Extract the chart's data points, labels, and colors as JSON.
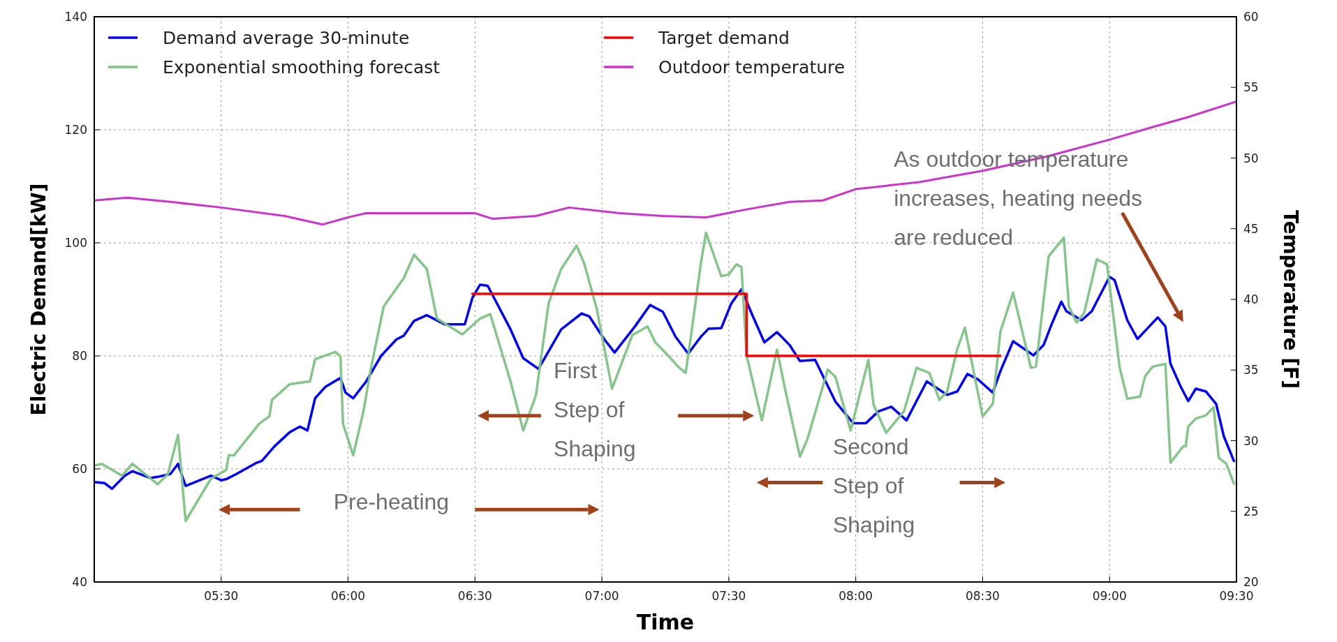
{
  "chart_data": {
    "type": "line",
    "xlabel": "Time",
    "ylabel": "Electric Demand[kW]",
    "y2label": "Temperature [F]",
    "xlim": [
      5,
      9.5
    ],
    "xticks": [
      {
        "value": 5.5,
        "label": "05:30"
      },
      {
        "value": 6,
        "label": "06:00"
      },
      {
        "value": 6.5,
        "label": "06:30"
      },
      {
        "value": 7,
        "label": "07:00"
      },
      {
        "value": 7.5,
        "label": "07:30"
      },
      {
        "value": 8,
        "label": "08:00"
      },
      {
        "value": 8.5,
        "label": "08:30"
      },
      {
        "value": 9,
        "label": "09:00"
      },
      {
        "value": 9.5,
        "label": "09:30"
      }
    ],
    "ylim": [
      40,
      140
    ],
    "yticks": [
      40,
      60,
      80,
      100,
      120,
      140
    ],
    "y2lim": [
      20,
      60
    ],
    "y2ticks": [
      20,
      25,
      30,
      35,
      40,
      45,
      50,
      55,
      60
    ],
    "grid": true,
    "legend": "top left",
    "line_style": "solid",
    "series": [
      {
        "name": "Demand average 30-minute",
        "color": "#0000ff",
        "x": [
          5.0,
          5.04,
          5.07,
          5.12,
          5.15,
          5.22,
          5.25,
          5.3,
          5.33,
          5.36,
          5.46,
          5.5,
          5.52,
          5.56,
          5.64,
          5.66,
          5.71,
          5.77,
          5.81,
          5.84,
          5.87,
          5.91,
          5.97,
          5.99,
          6.02,
          6.07,
          6.13,
          6.19,
          6.22,
          6.26,
          6.31,
          6.38,
          6.46,
          6.49,
          6.52,
          6.55,
          6.64,
          6.69,
          6.75,
          6.84,
          6.92,
          6.95,
          7.01,
          7.05,
          7.13,
          7.19,
          7.24,
          7.29,
          7.34,
          7.39,
          7.42,
          7.47,
          7.51,
          7.55,
          7.59,
          7.64,
          7.69,
          7.74,
          7.78,
          7.84,
          7.92,
          7.99,
          8.04,
          8.09,
          8.14,
          8.2,
          8.28,
          8.36,
          8.4,
          8.44,
          8.48,
          8.54,
          8.57,
          8.62,
          8.7,
          8.74,
          8.77,
          8.81,
          8.83,
          8.89,
          8.93,
          9.0,
          9.02,
          9.07,
          9.11,
          9.19,
          9.22,
          9.24,
          9.28,
          9.31,
          9.34,
          9.38,
          9.42,
          9.45,
          9.49
        ],
        "values": [
          57.7,
          57.5,
          56.5,
          58.8,
          59.6,
          58.4,
          58.6,
          59.1,
          60.9,
          57.0,
          58.8,
          58.0,
          58.2,
          59.1,
          61.1,
          61.4,
          64.0,
          66.5,
          67.5,
          66.8,
          72.5,
          74.5,
          76.1,
          73.5,
          72.5,
          75.4,
          80.0,
          82.9,
          83.6,
          86.2,
          87.2,
          85.6,
          85.6,
          90.3,
          92.6,
          92.4,
          84.7,
          79.6,
          77.7,
          84.7,
          87.5,
          87.0,
          82.9,
          80.6,
          85.2,
          89.0,
          87.8,
          83.4,
          80.4,
          83.4,
          84.8,
          84.9,
          89.3,
          91.8,
          87.5,
          82.4,
          84.2,
          81.9,
          79.1,
          79.3,
          71.9,
          68.1,
          68.1,
          70.2,
          71.0,
          68.6,
          75.5,
          73.1,
          73.7,
          76.8,
          75.9,
          73.5,
          77.3,
          82.6,
          80.1,
          81.9,
          85.4,
          89.6,
          87.9,
          86.3,
          87.9,
          94.0,
          93.4,
          86.3,
          83.0,
          86.8,
          85.2,
          78.6,
          74.6,
          72.0,
          74.2,
          73.7,
          71.5,
          65.8,
          61.4
        ]
      },
      {
        "name": "Exponential smoothing forecast",
        "color": "#7dc383",
        "x": [
          5.0,
          5.03,
          5.11,
          5.15,
          5.25,
          5.29,
          5.33,
          5.36,
          5.46,
          5.52,
          5.53,
          5.55,
          5.65,
          5.69,
          5.7,
          5.77,
          5.85,
          5.87,
          5.95,
          5.97,
          5.98,
          6.02,
          6.06,
          6.09,
          6.14,
          6.22,
          6.26,
          6.31,
          6.35,
          6.45,
          6.52,
          6.56,
          6.64,
          6.69,
          6.74,
          6.79,
          6.84,
          6.9,
          6.93,
          6.98,
          7.04,
          7.12,
          7.16,
          7.18,
          7.21,
          7.26,
          7.3,
          7.33,
          7.35,
          7.39,
          7.41,
          7.47,
          7.5,
          7.53,
          7.55,
          7.57,
          7.63,
          7.69,
          7.72,
          7.78,
          7.81,
          7.89,
          7.92,
          7.98,
          8.05,
          8.07,
          8.12,
          8.19,
          8.24,
          8.29,
          8.33,
          8.36,
          8.4,
          8.43,
          8.5,
          8.54,
          8.57,
          8.62,
          8.69,
          8.71,
          8.76,
          8.82,
          8.84,
          8.87,
          8.9,
          8.95,
          8.99,
          9.04,
          9.07,
          9.12,
          9.14,
          9.17,
          9.22,
          9.24,
          9.29,
          9.3,
          9.31,
          9.34,
          9.38,
          9.41,
          9.43,
          9.46,
          9.49
        ],
        "values": [
          60.6,
          60.9,
          58.8,
          60.9,
          57.3,
          59.1,
          66.0,
          50.8,
          58.3,
          59.8,
          62.4,
          62.4,
          68.0,
          69.3,
          72.2,
          75.0,
          75.5,
          79.4,
          80.7,
          79.9,
          68.0,
          62.4,
          70.1,
          77.8,
          88.7,
          93.8,
          97.9,
          95.4,
          86.6,
          83.8,
          86.6,
          87.4,
          75.5,
          66.8,
          73.0,
          89.3,
          95.4,
          99.5,
          96.4,
          88.3,
          74.2,
          83.7,
          84.7,
          85.2,
          82.4,
          80.1,
          78.1,
          77.0,
          83.2,
          96.4,
          101.8,
          94.1,
          94.4,
          96.2,
          95.7,
          80.1,
          68.6,
          81.1,
          74.5,
          62.2,
          65.3,
          77.6,
          76.3,
          66.8,
          79.3,
          71.4,
          66.4,
          70.2,
          77.9,
          77.0,
          72.2,
          73.7,
          81.2,
          85.0,
          69.3,
          71.5,
          84.3,
          91.2,
          77.9,
          78.1,
          97.6,
          100.9,
          88.7,
          85.9,
          87.6,
          97.1,
          96.2,
          77.9,
          72.4,
          72.8,
          76.4,
          78.1,
          78.6,
          61.1,
          64.0,
          64.0,
          67.5,
          68.9,
          69.5,
          70.9,
          62.0,
          60.9,
          57.4
        ]
      },
      {
        "name": "Target demand",
        "type": "step",
        "color": "#ff0000",
        "x": [
          6.49,
          7.57,
          8.57
        ],
        "values": [
          91,
          80,
          80
        ]
      },
      {
        "name": "Outdoor temperature",
        "color": "#cc33cc",
        "axis": "y2",
        "x": [
          5.0,
          5.13,
          5.3,
          5.5,
          5.75,
          5.9,
          6.0,
          6.07,
          6.24,
          6.5,
          6.57,
          6.74,
          6.87,
          7.07,
          7.24,
          7.41,
          7.58,
          7.74,
          7.87,
          8.0,
          8.25,
          8.5,
          8.75,
          9.0,
          9.17,
          9.31,
          9.5
        ],
        "values": [
          47.0,
          47.2,
          46.9,
          46.5,
          45.9,
          45.3,
          45.8,
          46.1,
          46.1,
          46.1,
          45.7,
          45.9,
          46.5,
          46.1,
          45.9,
          45.8,
          46.4,
          46.9,
          47.0,
          47.8,
          48.3,
          49.1,
          50.1,
          51.3,
          52.2,
          52.9,
          54.0
        ]
      }
    ],
    "annotations": [
      "Pre-heating",
      "First Step of Shaping",
      "Second Step of Shaping",
      "As outdoor temperature increases, heating needs are reduced"
    ]
  }
}
